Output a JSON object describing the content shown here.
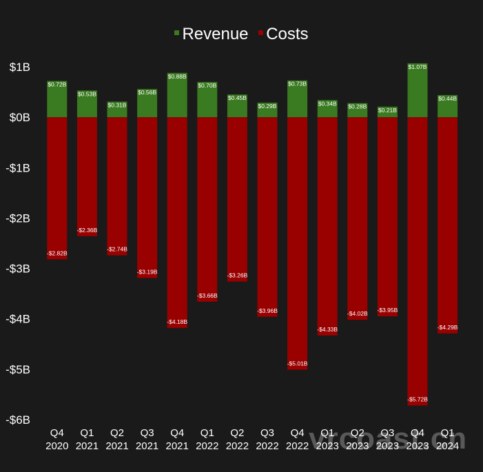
{
  "watermark": "vrcoast.cn",
  "legend": [
    {
      "label": "Revenue",
      "color": "#3a7a20"
    },
    {
      "label": "Costs",
      "color": "#990000"
    }
  ],
  "chart_data": {
    "type": "bar",
    "stacked": true,
    "categories": [
      [
        "Q4",
        "2020"
      ],
      [
        "Q1",
        "2021"
      ],
      [
        "Q2",
        "2021"
      ],
      [
        "Q3",
        "2021"
      ],
      [
        "Q4",
        "2021"
      ],
      [
        "Q1",
        "2022"
      ],
      [
        "Q2",
        "2022"
      ],
      [
        "Q3",
        "2022"
      ],
      [
        "Q4",
        "2022"
      ],
      [
        "Q1",
        "2023"
      ],
      [
        "Q2",
        "2023"
      ],
      [
        "Q3",
        "2023"
      ],
      [
        "Q4",
        "2023"
      ],
      [
        "Q1",
        "2024"
      ]
    ],
    "series": [
      {
        "name": "Revenue",
        "color": "#3a7a20",
        "values": [
          0.72,
          0.53,
          0.31,
          0.56,
          0.88,
          0.7,
          0.45,
          0.29,
          0.73,
          0.34,
          0.28,
          0.21,
          1.07,
          0.44
        ],
        "labels": [
          "$0.72B",
          "$0.53B",
          "$0.31B",
          "$0.56B",
          "$0.88B",
          "$0.70B",
          "$0.45B",
          "$0.29B",
          "$0.73B",
          "$0.34B",
          "$0.28B",
          "$0.21B",
          "$1.07B",
          "$0.44B"
        ]
      },
      {
        "name": "Costs",
        "color": "#990000",
        "values": [
          -2.82,
          -2.36,
          -2.74,
          -3.19,
          -4.18,
          -3.66,
          -3.26,
          -3.96,
          -5.01,
          -4.33,
          -4.02,
          -3.95,
          -5.72,
          -4.29
        ],
        "labels": [
          "-$2.82B",
          "-$2.36B",
          "-$2.74B",
          "-$3.19B",
          "-$4.18B",
          "-$3.66B",
          "-$3.26B",
          "-$3.96B",
          "-$5.01B",
          "-$4.33B",
          "-$4.02B",
          "-$3.95B",
          "-$5.72B",
          "-$4.29B"
        ]
      }
    ],
    "ylim": [
      -6,
      1
    ],
    "yticks": [
      1,
      0,
      -1,
      -2,
      -3,
      -4,
      -5,
      -6
    ],
    "ytick_labels": [
      "$1B",
      "$0B",
      "-$1B",
      "-$2B",
      "-$3B",
      "-$4B",
      "-$5B",
      "-$6B"
    ],
    "grid": false,
    "legend_position": "top-center"
  }
}
